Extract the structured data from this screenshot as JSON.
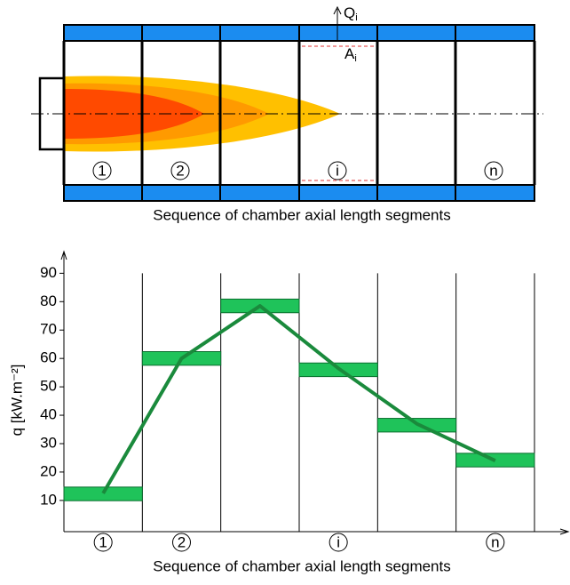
{
  "diagram": {
    "heat_flow_label": "Q",
    "heat_flow_sub": "i",
    "area_label": "A",
    "area_sub": "i",
    "segment_labels": [
      "1",
      "2",
      "i",
      "n"
    ],
    "caption": "Sequence of chamber axial length segments"
  },
  "chart_data": {
    "type": "line",
    "ylabel": "q [kW.m⁻²]",
    "xlabel": "Sequence of chamber axial length segments",
    "categories": [
      "1",
      "2",
      null,
      "i",
      null,
      "n"
    ],
    "series": [
      {
        "values": [
          12.3,
          60,
          78.5,
          56,
          36.5,
          24.2
        ],
        "color": "#1fc35a"
      },
      {
        "values": [
          12.5,
          60,
          78.5,
          56.5,
          37,
          24
        ],
        "color": "#1a8a3c"
      }
    ],
    "ylim": [
      -1,
      97
    ],
    "yticks": [
      10,
      20,
      30,
      40,
      50,
      60,
      70,
      80,
      90
    ]
  }
}
